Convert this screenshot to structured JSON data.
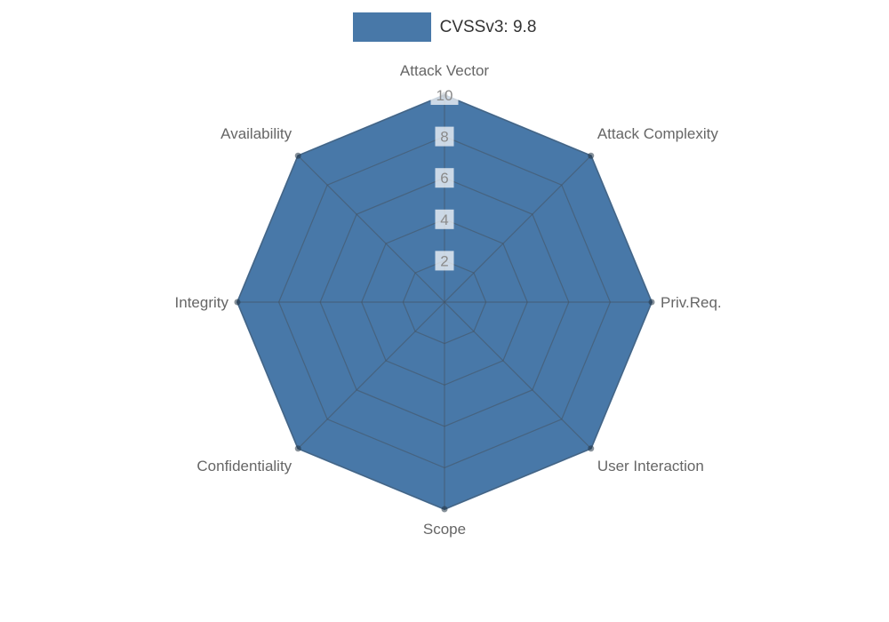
{
  "legend": {
    "label": "CVSSv3: 9.8",
    "swatch_color": "#4878A8"
  },
  "chart_data": {
    "type": "radar",
    "title": "CVSSv3: 9.8",
    "categories": [
      "Attack Vector",
      "Attack Complexity",
      "Priv.Req.",
      "User Interaction",
      "Scope",
      "Confidentiality",
      "Integrity",
      "Availability"
    ],
    "series": [
      {
        "name": "CVSSv3: 9.8",
        "values": [
          10,
          10,
          10,
          10,
          10,
          10,
          10,
          10
        ]
      }
    ],
    "max": 10,
    "ticks": [
      2,
      4,
      6,
      8,
      10
    ],
    "grid": true,
    "legend_position": "top",
    "fill_color": "#4878A8",
    "grid_color": "rgba(70, 82, 94, 0.55)",
    "tick_color": "#8a8a8a",
    "tick_backdrop_color": "rgba(255, 255, 255, 0.72)",
    "label_color": "#666666",
    "point_color": "rgba(35, 52, 70, 0.55)"
  }
}
